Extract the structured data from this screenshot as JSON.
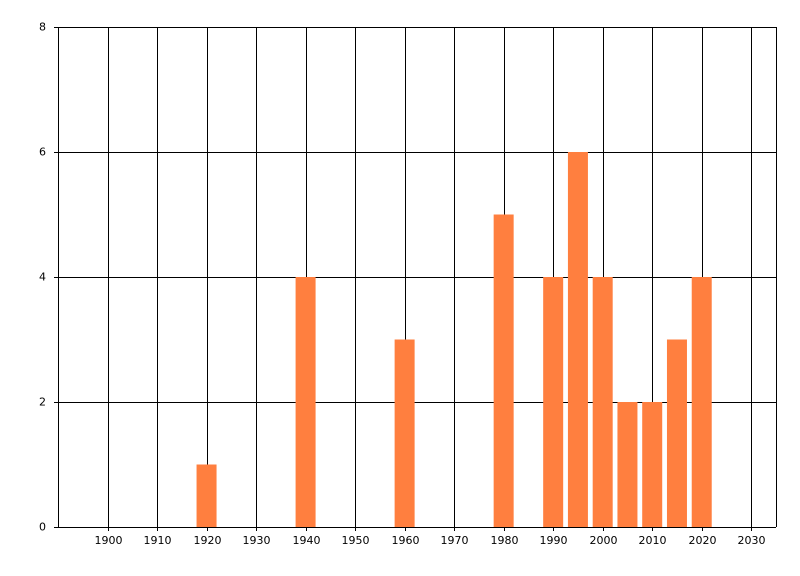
{
  "chart_data": {
    "type": "bar",
    "x": [
      1920,
      1940,
      1960,
      1980,
      1990,
      1995,
      2000,
      2005,
      2010,
      2015,
      2020
    ],
    "values": [
      1,
      4,
      3,
      5,
      4,
      6,
      4,
      2,
      2,
      3,
      4
    ],
    "color": "#ff7f3f",
    "xlim": [
      1890,
      2035
    ],
    "xticks": [
      1900,
      1910,
      1920,
      1930,
      1940,
      1950,
      1960,
      1970,
      1980,
      1990,
      2000,
      2010,
      2020,
      2030
    ],
    "ylim": [
      0,
      8
    ],
    "yticks": [
      0,
      2,
      4,
      6,
      8
    ],
    "grid": true
  }
}
